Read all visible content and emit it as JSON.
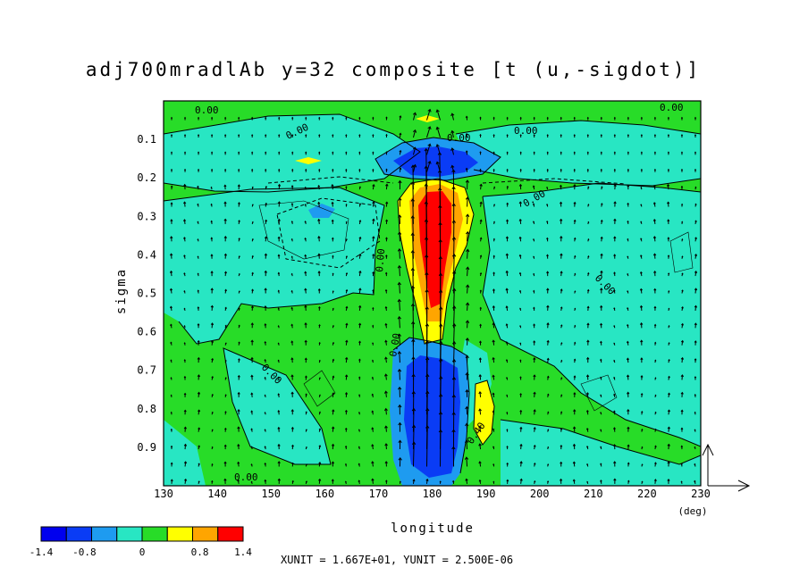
{
  "chart_data": {
    "type": "heatmap",
    "subtype": "filled contour with vector overlay",
    "title": "adj700mradlAb y=32 composite [t (u,-sigdot)]",
    "xlabel": "longitude",
    "ylabel": "sigma",
    "x_unit": "(deg)",
    "xlim": [
      130,
      230
    ],
    "ylim": [
      0.0,
      1.0
    ],
    "y_inverted": true,
    "x_ticks": [
      "130",
      "140",
      "150",
      "160",
      "170",
      "180",
      "190",
      "200",
      "210",
      "220",
      "230"
    ],
    "y_ticks": [
      "0.1",
      "0.2",
      "0.3",
      "0.4",
      "0.5",
      "0.6",
      "0.7",
      "0.8",
      "0.9"
    ],
    "grid": false,
    "colorbar": {
      "levels": [
        -1.4,
        -1.0,
        -0.8,
        -0.4,
        0.0,
        0.4,
        0.8,
        1.2,
        1.4
      ],
      "colors": [
        "#0000ee",
        "#0a3cf5",
        "#1e9bf0",
        "#28e6c3",
        "#28dc28",
        "#ffff00",
        "#ffa500",
        "#ff0000"
      ],
      "tick_labels": [
        "-1.4",
        "-0.8",
        "0",
        "0.8",
        "1.4"
      ]
    },
    "contour_labels": [
      "0.00",
      "0.00",
      "0.00",
      "0.00",
      "0.00",
      "0.00",
      "0.00",
      "0.00",
      "0.00",
      "0.00",
      "0.00",
      "0.40"
    ],
    "vector_unit_text": "XUNIT = 1.667E+01, YUNIT = 2.500E-06",
    "features": [
      {
        "name": "upper negative anomaly",
        "lon": [
          174,
          188
        ],
        "sigma": [
          0.15,
          0.2
        ],
        "level": "< -1.0"
      },
      {
        "name": "upper-mid positive core",
        "lon": [
          176,
          186
        ],
        "sigma": [
          0.22,
          0.6
        ],
        "level": "> 1.2"
      },
      {
        "name": "lower negative core",
        "lon": [
          176,
          186
        ],
        "sigma": [
          0.65,
          0.98
        ],
        "level": "< -1.0"
      },
      {
        "name": "lower positive lobe",
        "lon": [
          186,
          192
        ],
        "sigma": [
          0.75,
          0.93
        ],
        "level": "0.4–0.8"
      },
      {
        "name": "small negative spot",
        "lon": [
          154,
          158
        ],
        "sigma": [
          0.28,
          0.31
        ],
        "level": "-0.8–-0.4"
      },
      {
        "name": "small positive spot",
        "lon": [
          155,
          160
        ],
        "sigma": [
          0.18,
          0.19
        ],
        "level": "0.4–0.8"
      },
      {
        "name": "small positive spot",
        "lon": [
          177,
          181
        ],
        "sigma": [
          0.08,
          0.09
        ],
        "level": "0.4–0.8"
      }
    ]
  }
}
